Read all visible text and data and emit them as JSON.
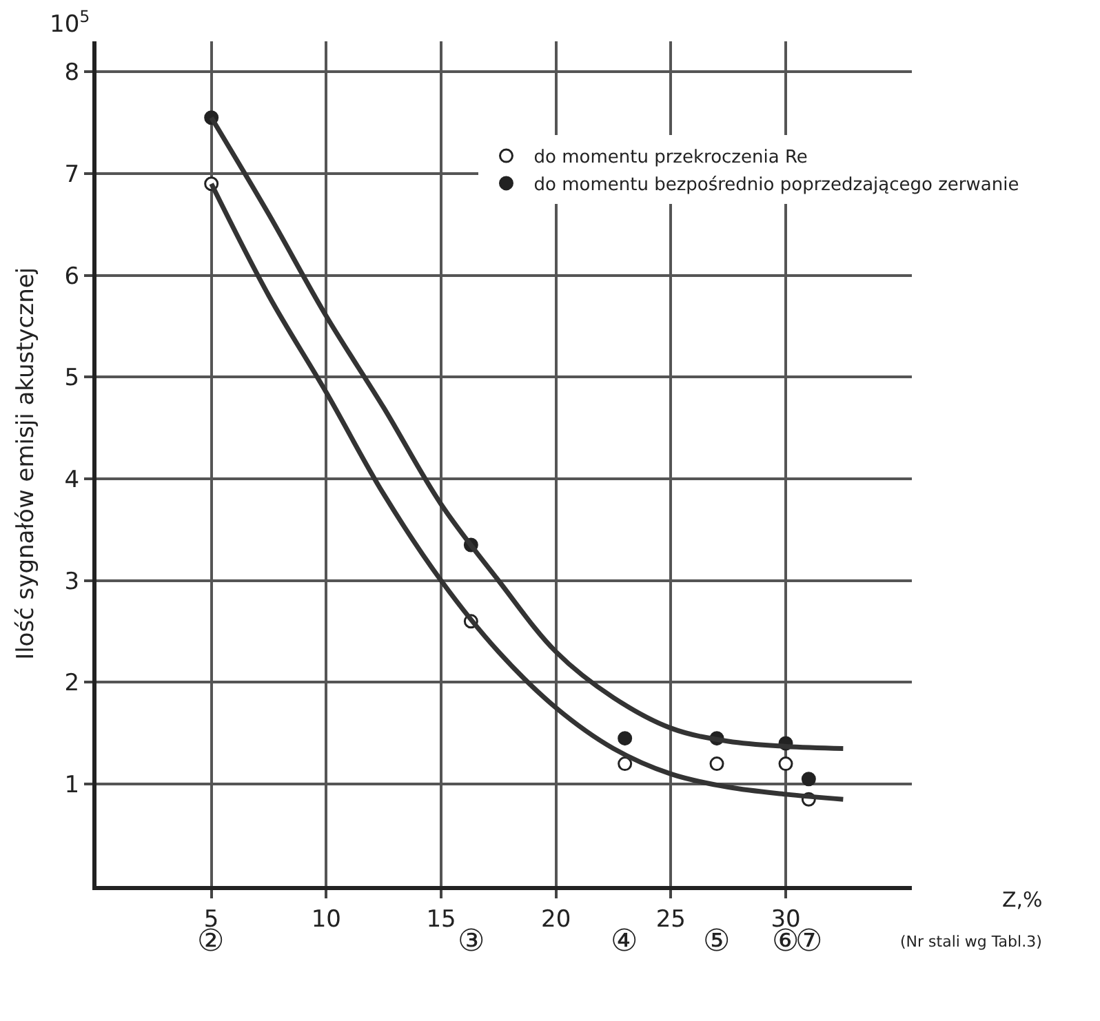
{
  "chart_data": {
    "type": "scatter",
    "xlabel": "Z,%",
    "ylabel": "Ilość sygnałów emisji akustycznej",
    "annotations": [
      "10$^{5}$",
      "(Nr stali wg Tabl.3)",
      "②",
      "③",
      "④",
      "⑤",
      "⑥",
      "⑦"
    ],
    "xlim": [
      0,
      35.5
    ],
    "xticks": [
      5,
      10,
      15,
      20,
      25,
      30
    ],
    "ylim": [
      0,
      8.3
    ],
    "yticks": [
      1,
      2,
      3,
      4,
      5,
      6,
      7,
      8
    ],
    "grid": true,
    "legend": "top right",
    "marker": "circle",
    "series": [
      {
        "name": "do momentu przekroczenia Re",
        "color": "#ffffff",
        "x": [
          5,
          16.3,
          23,
          27,
          30,
          31
        ],
        "values": [
          6.9,
          2.6,
          1.2,
          1.2,
          1.2,
          0.85
        ]
      },
      {
        "name": "do momentu bezpośrednio poprzedzającego zerwanie",
        "color": "#222222",
        "x": [
          5,
          16.3,
          23,
          27,
          30,
          31
        ],
        "values": [
          7.55,
          3.35,
          1.45,
          1.45,
          1.4,
          1.05
        ]
      },
      {
        "type": "line",
        "marker": "none",
        "color": "#333333",
        "x": [
          5,
          7.5,
          10,
          12.5,
          15,
          17.5,
          20,
          22.5,
          25,
          27.5,
          30,
          32.5
        ],
        "values": [
          7.55,
          6.6,
          5.6,
          4.7,
          3.75,
          3.0,
          2.3,
          1.85,
          1.55,
          1.42,
          1.37,
          1.35
        ]
      },
      {
        "type": "line",
        "marker": "none",
        "color": "#333333",
        "x": [
          5,
          7.5,
          10,
          12.5,
          15,
          17.5,
          20,
          22.5,
          25,
          27.5,
          30,
          32.5
        ],
        "values": [
          6.9,
          5.8,
          4.85,
          3.85,
          3.0,
          2.3,
          1.75,
          1.35,
          1.1,
          0.97,
          0.9,
          0.85
        ]
      }
    ]
  }
}
